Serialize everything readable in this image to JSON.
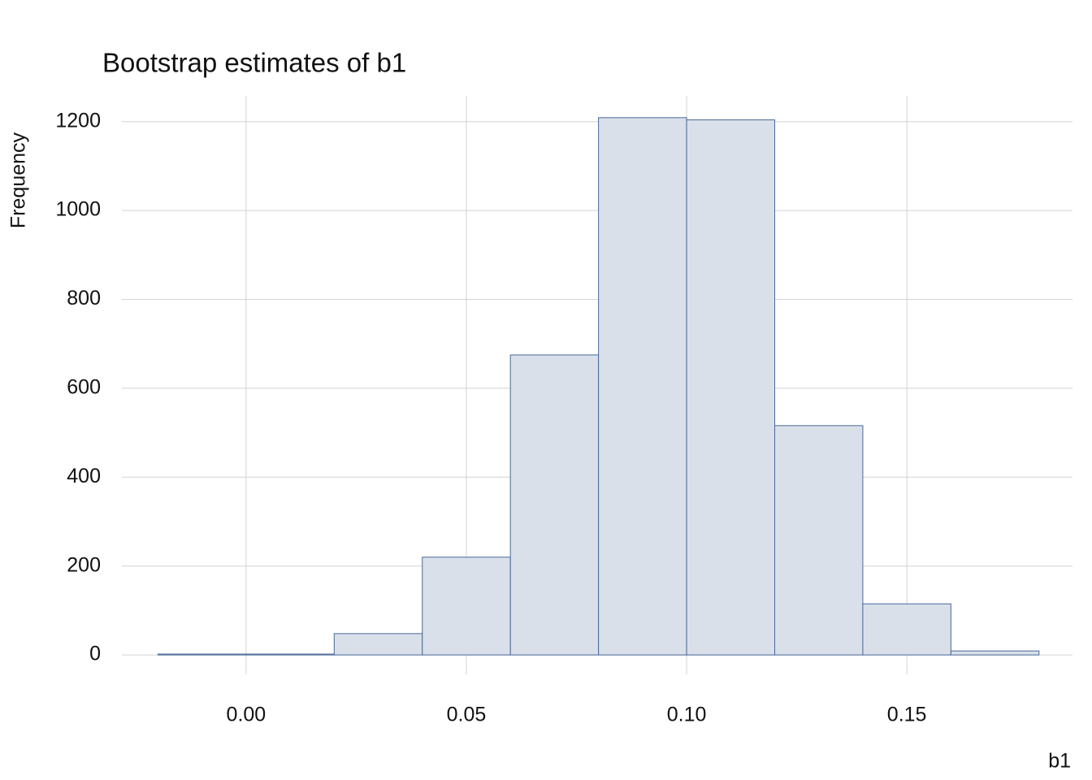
{
  "chart_data": {
    "type": "histogram",
    "title": "Bootstrap estimates of b1",
    "x_label": "b1",
    "y_label": "Frequency",
    "bins": [
      -0.02,
      0.0,
      0.02,
      0.04,
      0.06,
      0.08,
      0.1,
      0.12,
      0.14,
      0.16,
      0.18
    ],
    "values": [
      2,
      2,
      48,
      220,
      675,
      1209,
      1204,
      516,
      115,
      9
    ],
    "color": "#d9e0e9",
    "edge_color": "#4a6a9a",
    "xlim": [
      -0.0282,
      0.1876
    ],
    "ylim": [
      -62,
      1258
    ],
    "xticks": [
      {
        "value": 0.0,
        "label": "0.00"
      },
      {
        "value": 0.05,
        "label": "0.05"
      },
      {
        "value": 0.1,
        "label": "0.10"
      },
      {
        "value": 0.15,
        "label": "0.15"
      }
    ],
    "yticks": [
      0,
      200,
      400,
      600,
      800,
      1000,
      1200
    ],
    "grid": true
  }
}
